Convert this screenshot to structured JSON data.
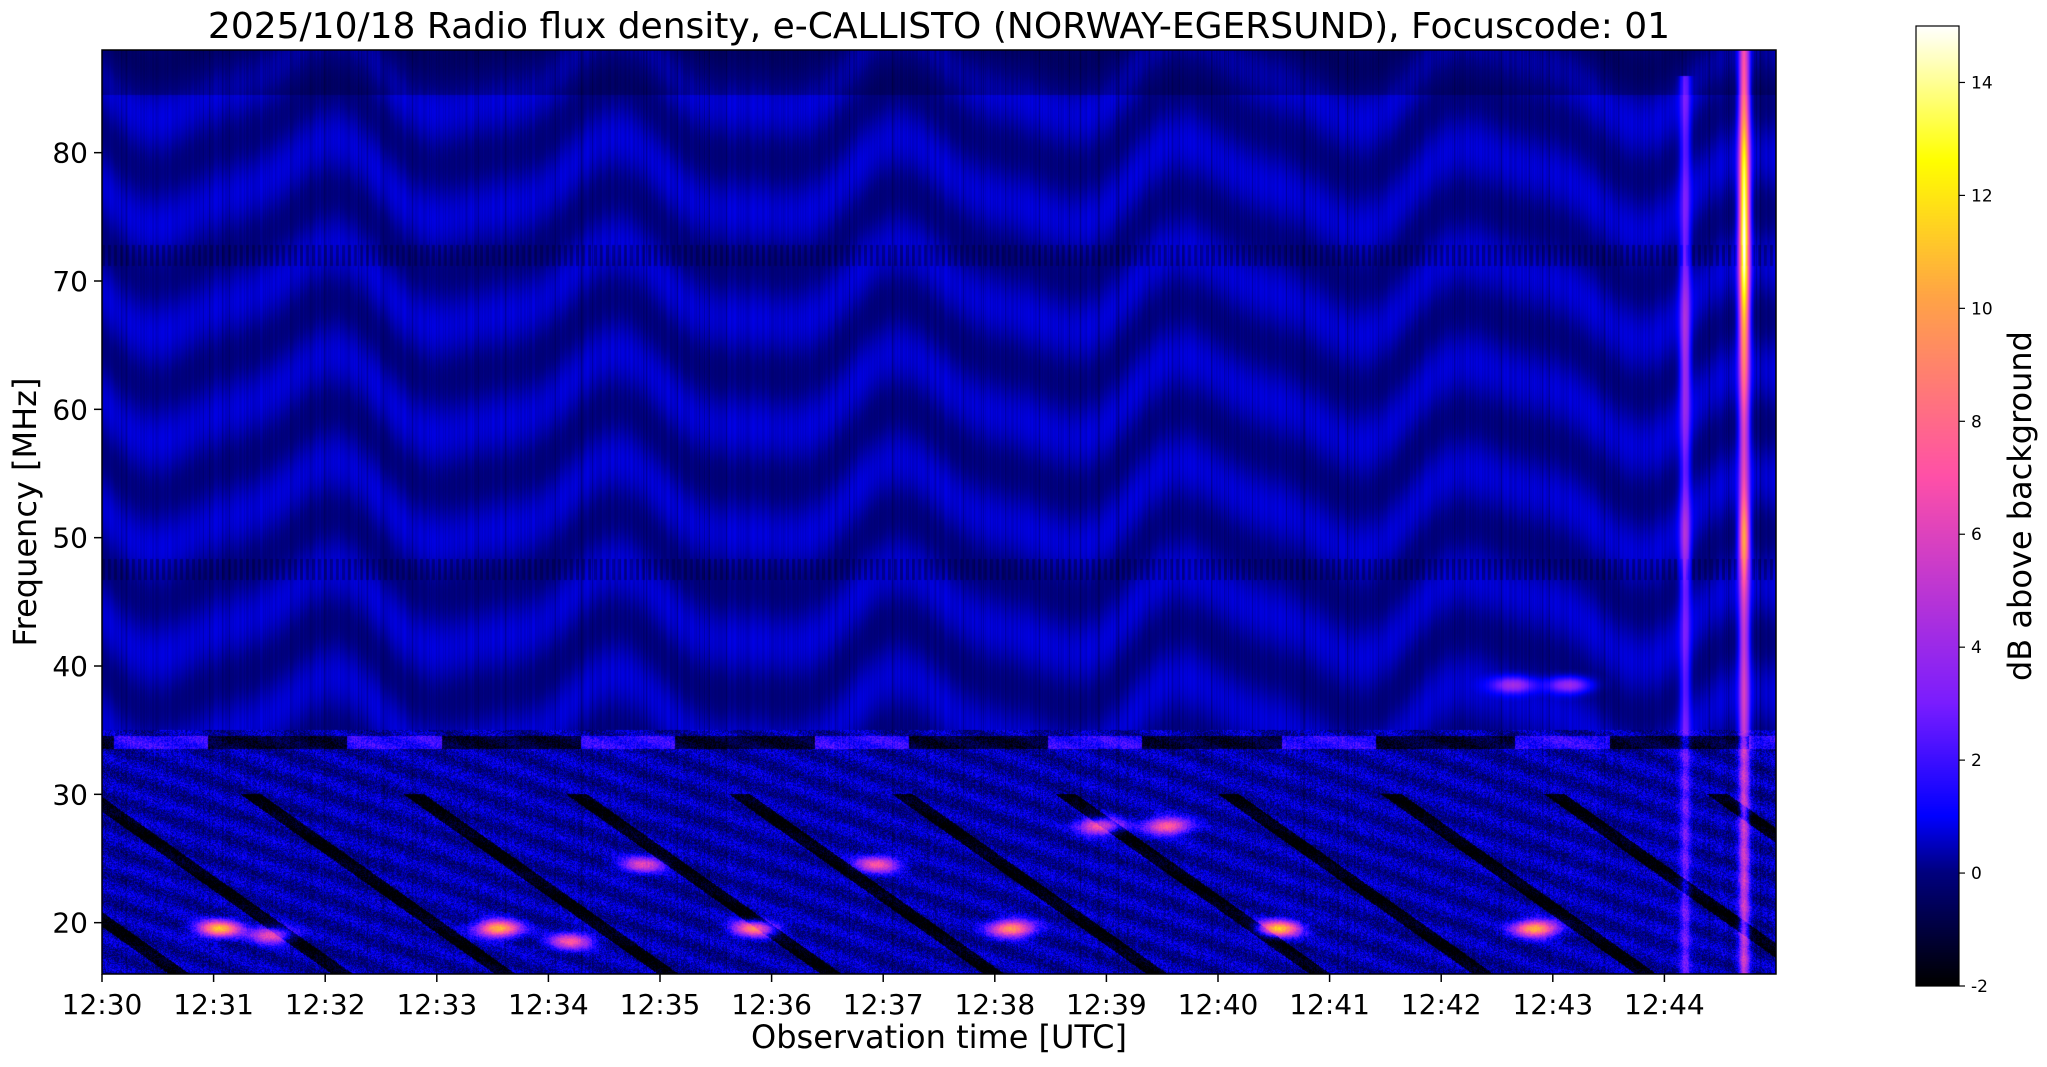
{
  "chart_data": {
    "type": "heatmap",
    "title": "2025/10/18  Radio flux density, e-CALLISTO (NORWAY-EGERSUND), Focuscode: 01",
    "xlabel": "Observation time [UTC]",
    "ylabel": "Frequency [MHz]",
    "colorbar_label": "dB above background",
    "x_tick_labels": [
      "12:30",
      "12:31",
      "12:32",
      "12:33",
      "12:34",
      "12:35",
      "12:36",
      "12:37",
      "12:38",
      "12:39",
      "12:40",
      "12:41",
      "12:42",
      "12:43",
      "12:44"
    ],
    "x_range_minutes": [
      0,
      15
    ],
    "y_ticks": [
      20,
      30,
      40,
      50,
      60,
      70,
      80
    ],
    "y_range": [
      16,
      88
    ],
    "colorbar_ticks": [
      -2,
      0,
      2,
      4,
      6,
      8,
      10,
      12,
      14
    ],
    "colorbar_range": [
      -2,
      15
    ],
    "colormap": "gnuplot2",
    "colormap_stops": [
      "#000000",
      "#00007f",
      "#0000ff",
      "#7a1dff",
      "#ff50a8",
      "#ffa545",
      "#ffff00",
      "#ffffff"
    ],
    "background_level_db": 0.3,
    "features": {
      "broadband_bursts": [
        {
          "time_min": 14.19,
          "freq_range": [
            16,
            86
          ],
          "peak_db": 6
        },
        {
          "time_min": 14.72,
          "freq_range": [
            16,
            88
          ],
          "peak_db": 15
        }
      ],
      "low_band_patches": [
        {
          "time_min": 1.05,
          "freq": 19.5,
          "peak_db": 11
        },
        {
          "time_min": 1.52,
          "freq": 19.0,
          "peak_db": 7
        },
        {
          "time_min": 3.55,
          "freq": 19.5,
          "peak_db": 11
        },
        {
          "time_min": 4.2,
          "freq": 18.5,
          "peak_db": 7
        },
        {
          "time_min": 5.85,
          "freq": 19.5,
          "peak_db": 9
        },
        {
          "time_min": 8.15,
          "freq": 19.5,
          "peak_db": 10
        },
        {
          "time_min": 10.55,
          "freq": 19.5,
          "peak_db": 11
        },
        {
          "time_min": 12.85,
          "freq": 19.5,
          "peak_db": 11
        },
        {
          "time_min": 8.95,
          "freq": 27.5,
          "peak_db": 8
        },
        {
          "time_min": 9.55,
          "freq": 27.5,
          "peak_db": 8
        },
        {
          "time_min": 6.95,
          "freq": 24.5,
          "peak_db": 7
        },
        {
          "time_min": 4.85,
          "freq": 24.5,
          "peak_db": 6
        },
        {
          "time_min": 12.65,
          "freq": 38.5,
          "peak_db": 4
        },
        {
          "time_min": 13.15,
          "freq": 38.5,
          "peak_db": 4
        }
      ],
      "interference_band_mhz": 34
    }
  }
}
